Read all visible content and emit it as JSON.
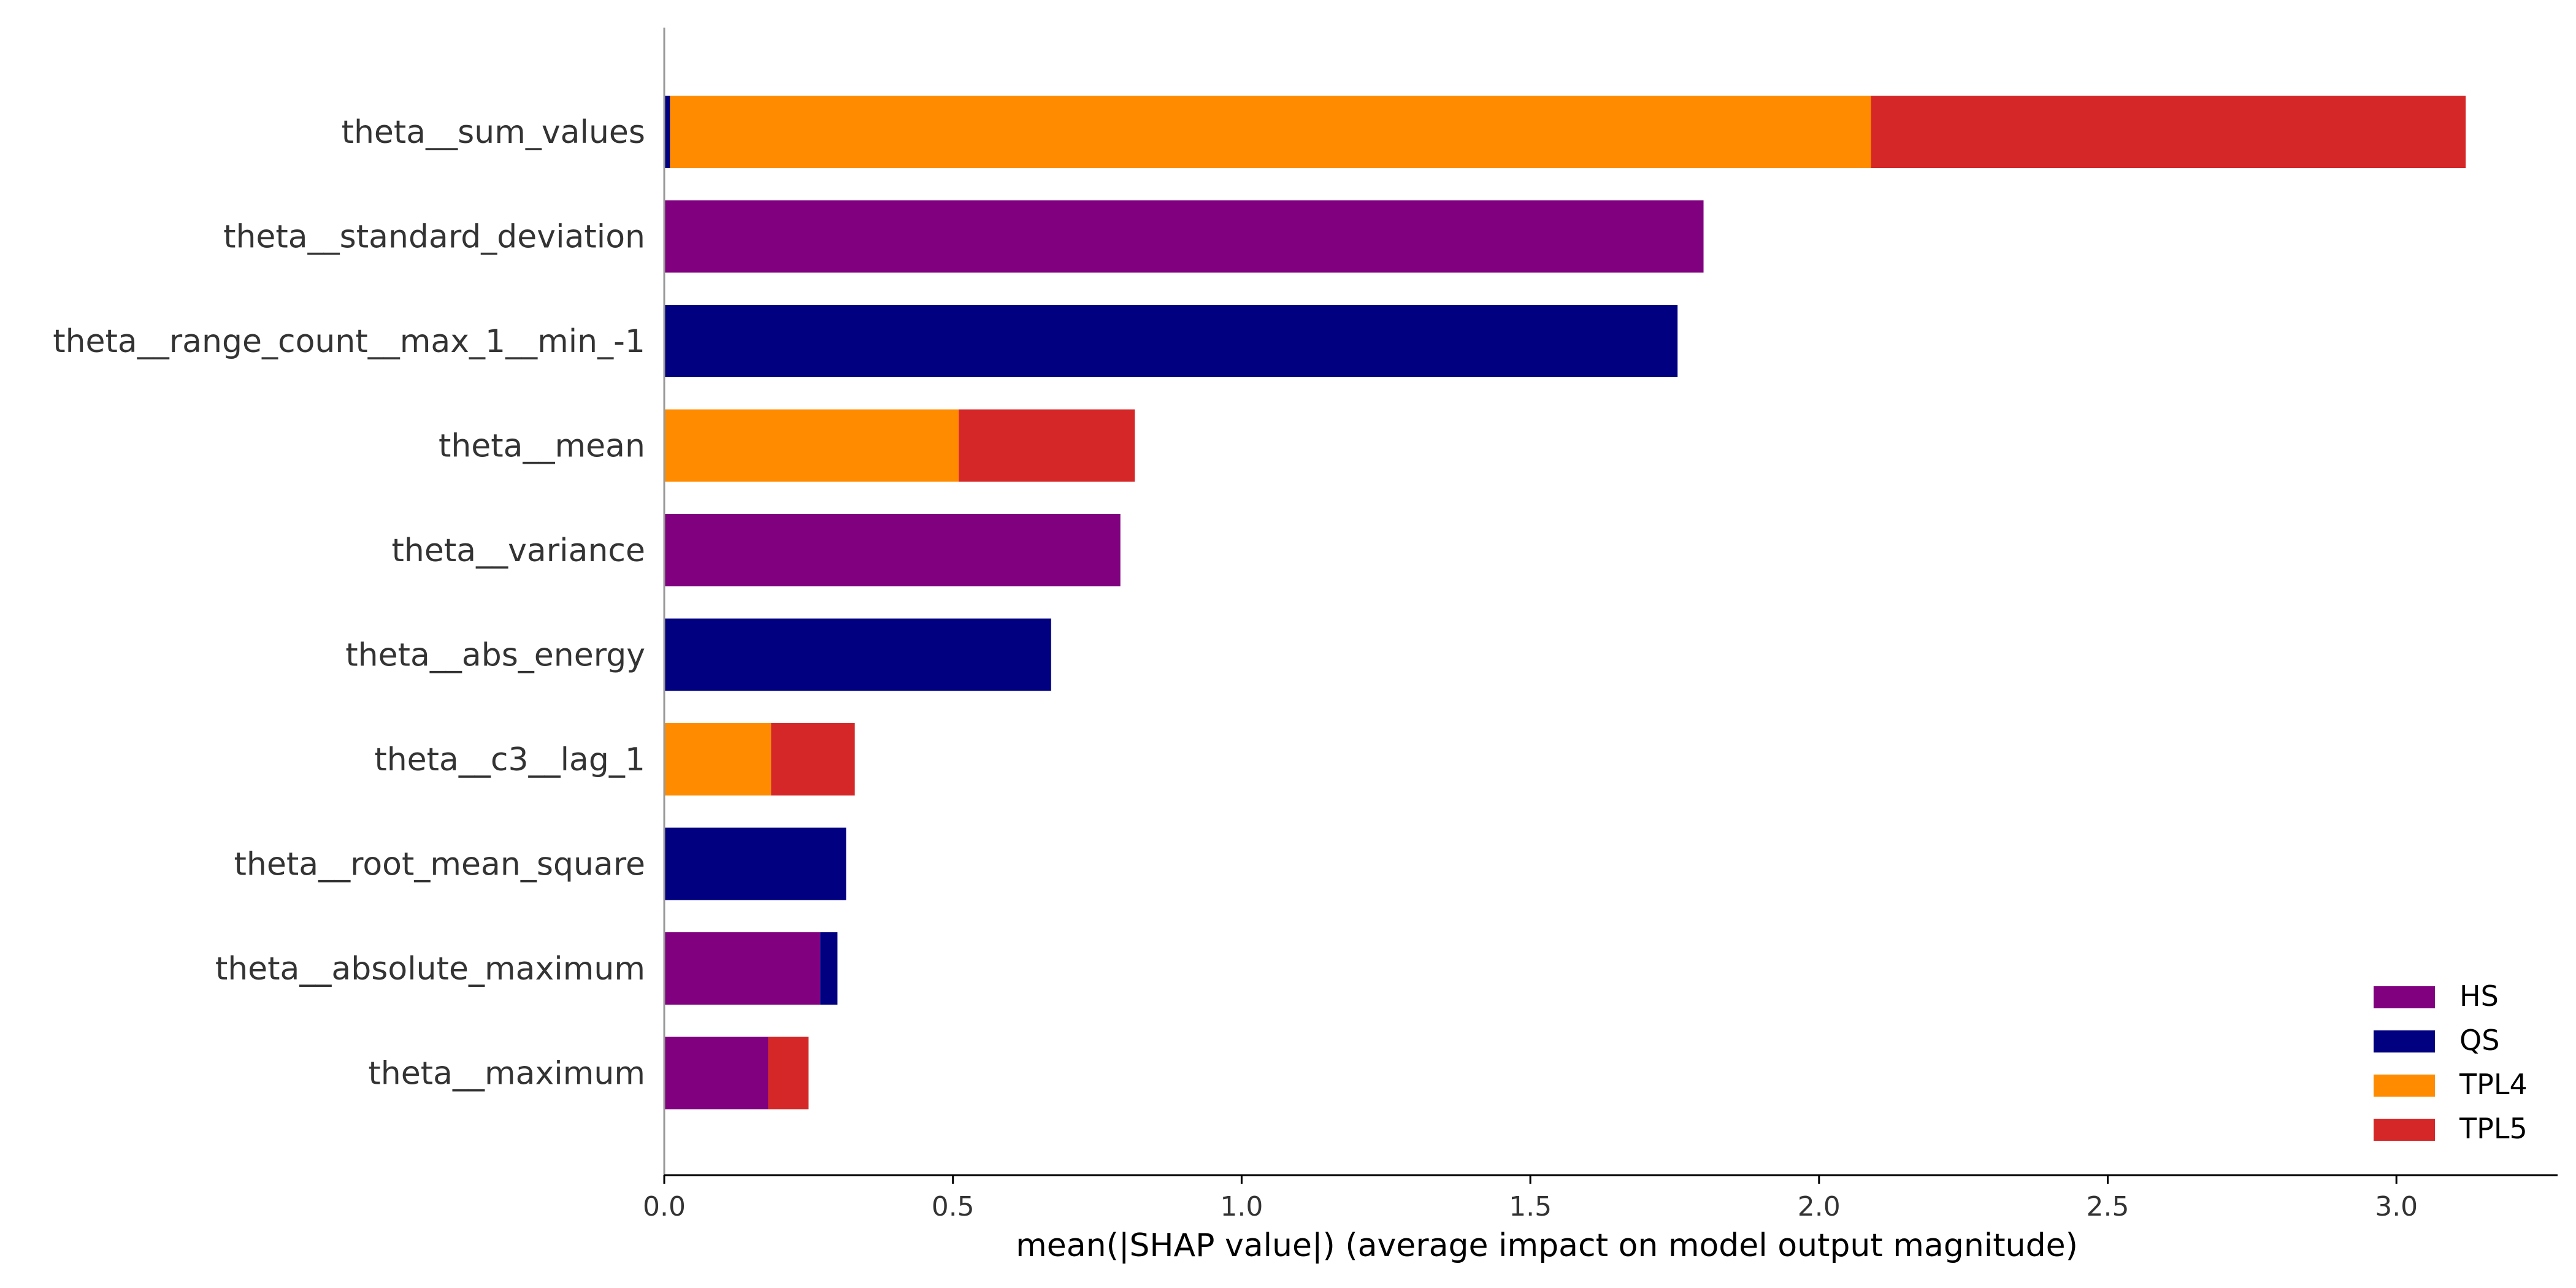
{
  "chart_data": {
    "type": "bar",
    "orientation": "horizontal",
    "stacked": true,
    "categories": [
      "theta__sum_values",
      "theta__standard_deviation",
      "theta__range_count__max_1__min_-1",
      "theta__mean",
      "theta__variance",
      "theta__abs_energy",
      "theta__c3__lag_1",
      "theta__root_mean_square",
      "theta__absolute_maximum",
      "theta__maximum"
    ],
    "series": [
      {
        "name": "HS",
        "color": "#800080",
        "values": [
          0,
          1.8,
          0,
          0,
          0.79,
          0,
          0,
          0,
          0.27,
          0.18
        ]
      },
      {
        "name": "QS",
        "color": "#000080",
        "values": [
          0.01,
          0,
          1.755,
          0,
          0,
          0.67,
          0,
          0.315,
          0.03,
          0
        ]
      },
      {
        "name": "TPL4",
        "color": "#FF8C00",
        "values": [
          2.08,
          0,
          0,
          0.51,
          0,
          0,
          0.185,
          0,
          0,
          0
        ]
      },
      {
        "name": "TPL5",
        "color": "#D62728",
        "values": [
          1.03,
          0,
          0,
          0.305,
          0,
          0,
          0.145,
          0,
          0,
          0.07
        ]
      }
    ],
    "xlabel": "mean(|SHAP value|) (average impact on model output magnitude)",
    "ylabel": "",
    "xlim": [
      0,
      3.27
    ],
    "xticks": [
      "0.0",
      "0.5",
      "1.0",
      "1.5",
      "2.0",
      "2.5",
      "3.0"
    ],
    "legend_position": "bottom-right",
    "grid": false
  }
}
